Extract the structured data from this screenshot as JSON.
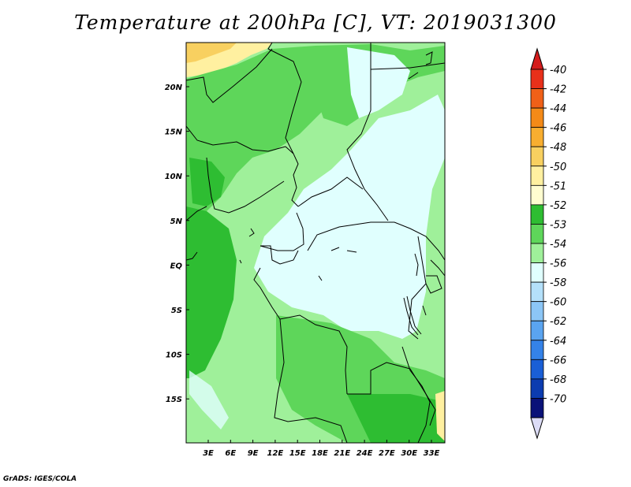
{
  "title": "Temperature at 200hPa [C], VT: 2019031300",
  "credit": "GrADS: IGES/COLA",
  "map": {
    "lat_labels": [
      "20N",
      "15N",
      "10N",
      "5N",
      "EQ",
      "5S",
      "10S",
      "15S"
    ],
    "lon_labels": [
      "3E",
      "6E",
      "9E",
      "12E",
      "15E",
      "18E",
      "21E",
      "24E",
      "27E",
      "30E",
      "33E"
    ]
  },
  "colorbar": {
    "labels": [
      "-40",
      "-42",
      "-44",
      "-46",
      "-48",
      "-50",
      "-51",
      "-52",
      "-53",
      "-54",
      "-56",
      "-58",
      "-60",
      "-62",
      "-64",
      "-66",
      "-68",
      "-70"
    ],
    "colors": [
      "#e8301a",
      "#f06018",
      "#f48a18",
      "#f8ae30",
      "#f8d060",
      "#fff0a0",
      "#fffdd0",
      "#2ebd32",
      "#5ed65a",
      "#9ff09a",
      "#e0fffe",
      "#b4e0fa",
      "#8cc6f6",
      "#5aa4f0",
      "#3482e8",
      "#1a5fd6",
      "#0c3cb0",
      "#0a1278"
    ],
    "top_color": "#d41c1c",
    "bottom_color": "#dcdcf6"
  }
}
